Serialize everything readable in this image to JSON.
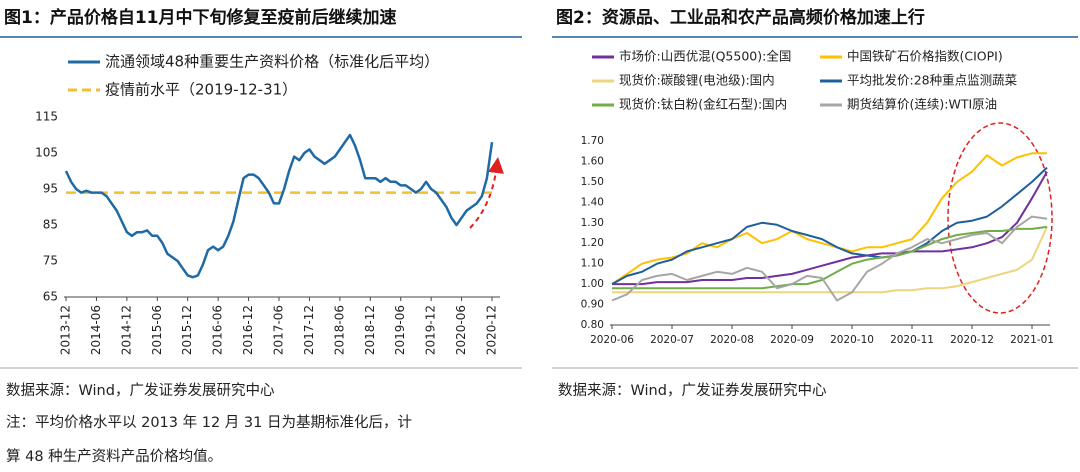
{
  "chart_data": [
    {
      "type": "line",
      "title": "图1：产品价格自11月中下旬修复至疫前后继续加速",
      "x": [
        "2013-12",
        "2014-01",
        "2014-02",
        "2014-03",
        "2014-04",
        "2014-05",
        "2014-06",
        "2014-07",
        "2014-08",
        "2014-09",
        "2014-10",
        "2014-11",
        "2014-12",
        "2015-01",
        "2015-02",
        "2015-03",
        "2015-04",
        "2015-05",
        "2015-06",
        "2015-07",
        "2015-08",
        "2015-09",
        "2015-10",
        "2015-11",
        "2015-12",
        "2016-01",
        "2016-02",
        "2016-03",
        "2016-04",
        "2016-05",
        "2016-06",
        "2016-07",
        "2016-08",
        "2016-09",
        "2016-10",
        "2016-11",
        "2016-12",
        "2017-01",
        "2017-02",
        "2017-03",
        "2017-04",
        "2017-05",
        "2017-06",
        "2017-07",
        "2017-08",
        "2017-09",
        "2017-10",
        "2017-11",
        "2017-12",
        "2018-01",
        "2018-02",
        "2018-03",
        "2018-04",
        "2018-05",
        "2018-06",
        "2018-07",
        "2018-08",
        "2018-09",
        "2018-10",
        "2018-11",
        "2018-12",
        "2019-01",
        "2019-02",
        "2019-03",
        "2019-04",
        "2019-05",
        "2019-06",
        "2019-07",
        "2019-08",
        "2019-09",
        "2019-10",
        "2019-11",
        "2019-12",
        "2020-01",
        "2020-02",
        "2020-03",
        "2020-04",
        "2020-05",
        "2020-06",
        "2020-07",
        "2020-08",
        "2020-09",
        "2020-10",
        "2020-11",
        "2020-12"
      ],
      "xticks": [
        "2013-12",
        "2014-06",
        "2014-12",
        "2015-06",
        "2015-12",
        "2016-06",
        "2016-12",
        "2017-06",
        "2017-12",
        "2018-06",
        "2018-12",
        "2019-06",
        "2019-12",
        "2020-06",
        "2020-12"
      ],
      "series": [
        {
          "name": "流通领域48种重要生产资料价格（标准化后平均）",
          "color": "#1f6aa5",
          "values": [
            100,
            97,
            95,
            94,
            94.5,
            94,
            94,
            94,
            93,
            91,
            89,
            86,
            83,
            82,
            83,
            83,
            83.5,
            82,
            82,
            80,
            77,
            76,
            75,
            73,
            71,
            70.5,
            71,
            74,
            78,
            79,
            78,
            79,
            82,
            86,
            92,
            98,
            99,
            99,
            98,
            96,
            94,
            91,
            91,
            95,
            100,
            104,
            103,
            105,
            106,
            104,
            103,
            102,
            103,
            104,
            106,
            108,
            110,
            107,
            103,
            98,
            98,
            98,
            97,
            98,
            97,
            97,
            96,
            96,
            95,
            94,
            95,
            97,
            95,
            94,
            92,
            90,
            87,
            85,
            87,
            89,
            90,
            91,
            93,
            98,
            108
          ]
        }
      ],
      "reference_line": {
        "name": "疫情前水平（2019-12-31）",
        "value": 94,
        "color": "#f0c030"
      },
      "ylim": [
        65,
        115
      ],
      "yticks": [
        65,
        75,
        85,
        95,
        105,
        115
      ]
    },
    {
      "type": "line",
      "title": "图2：资源品、工业品和农产品高频价格加速上行",
      "x": [
        "2020-06",
        "2020-06",
        "2020-06",
        "2020-06",
        "2020-07",
        "2020-07",
        "2020-07",
        "2020-07",
        "2020-08",
        "2020-08",
        "2020-08",
        "2020-08",
        "2020-09",
        "2020-09",
        "2020-09",
        "2020-09",
        "2020-10",
        "2020-10",
        "2020-10",
        "2020-10",
        "2020-11",
        "2020-11",
        "2020-11",
        "2020-11",
        "2020-12",
        "2020-12",
        "2020-12",
        "2020-12",
        "2021-01",
        "2021-01"
      ],
      "xticks": [
        "2020-06",
        "2020-07",
        "2020-08",
        "2020-09",
        "2020-10",
        "2020-11",
        "2020-12",
        "2021-01"
      ],
      "series": [
        {
          "name": "市场价:山西优混(Q5500):全国",
          "color": "#7030a0",
          "values": [
            1.0,
            1.0,
            1.0,
            1.01,
            1.01,
            1.01,
            1.02,
            1.02,
            1.02,
            1.03,
            1.03,
            1.04,
            1.05,
            1.07,
            1.09,
            1.11,
            1.13,
            1.14,
            1.15,
            1.15,
            1.16,
            1.16,
            1.16,
            1.17,
            1.18,
            1.2,
            1.23,
            1.3,
            1.42,
            1.55
          ]
        },
        {
          "name": "中国铁矿石价格指数(CIOPI)",
          "color": "#ffc000",
          "values": [
            1.0,
            1.05,
            1.1,
            1.12,
            1.13,
            1.15,
            1.2,
            1.18,
            1.22,
            1.25,
            1.2,
            1.22,
            1.26,
            1.22,
            1.2,
            1.18,
            1.16,
            1.18,
            1.18,
            1.2,
            1.22,
            1.3,
            1.42,
            1.5,
            1.55,
            1.63,
            1.58,
            1.62,
            1.64,
            1.64
          ]
        },
        {
          "name": "现货价:碳酸锂(电池级):国内",
          "color": "#ecd57e",
          "values": [
            0.96,
            0.96,
            0.96,
            0.96,
            0.96,
            0.96,
            0.96,
            0.96,
            0.96,
            0.96,
            0.96,
            0.96,
            0.96,
            0.96,
            0.96,
            0.96,
            0.96,
            0.96,
            0.96,
            0.97,
            0.97,
            0.98,
            0.98,
            0.99,
            1.01,
            1.03,
            1.05,
            1.07,
            1.12,
            1.28
          ]
        },
        {
          "name": "平均批发价:28种重点监测蔬菜",
          "color": "#1f5f9e",
          "values": [
            1.0,
            1.04,
            1.06,
            1.1,
            1.12,
            1.16,
            1.18,
            1.2,
            1.22,
            1.28,
            1.3,
            1.29,
            1.26,
            1.24,
            1.22,
            1.18,
            1.15,
            1.14,
            1.13,
            1.14,
            1.16,
            1.2,
            1.26,
            1.3,
            1.31,
            1.33,
            1.38,
            1.44,
            1.5,
            1.57
          ]
        },
        {
          "name": "现货价:钛白粉(金红石型):国内",
          "color": "#70ad47",
          "values": [
            0.98,
            0.98,
            0.98,
            0.98,
            0.98,
            0.98,
            0.98,
            0.98,
            0.98,
            0.98,
            0.98,
            0.99,
            1.0,
            1.0,
            1.02,
            1.06,
            1.1,
            1.12,
            1.13,
            1.14,
            1.16,
            1.19,
            1.22,
            1.24,
            1.25,
            1.26,
            1.26,
            1.27,
            1.27,
            1.28
          ]
        },
        {
          "name": "期货结算价(连续):WTI原油",
          "color": "#a6a6a6",
          "values": [
            0.92,
            0.95,
            1.02,
            1.04,
            1.05,
            1.02,
            1.04,
            1.06,
            1.05,
            1.08,
            1.06,
            0.98,
            1.0,
            1.04,
            1.03,
            0.92,
            0.96,
            1.06,
            1.1,
            1.15,
            1.18,
            1.22,
            1.2,
            1.22,
            1.24,
            1.25,
            1.2,
            1.28,
            1.33,
            1.32
          ]
        }
      ],
      "ylim": [
        0.8,
        1.7
      ],
      "yticks": [
        {
          "value": 0.8,
          "label": "0.80"
        },
        {
          "value": 0.9,
          "label": "0.90"
        },
        {
          "value": 1.0,
          "label": "1.00"
        },
        {
          "value": 1.1,
          "label": "1.10"
        },
        {
          "value": 1.2,
          "label": "1.20"
        },
        {
          "value": 1.3,
          "label": "1.30"
        },
        {
          "value": 1.4,
          "label": "1.40"
        },
        {
          "value": 1.5,
          "label": "1.50"
        },
        {
          "value": 1.6,
          "label": "1.60"
        },
        {
          "value": 1.7,
          "label": "1.70"
        }
      ]
    }
  ],
  "sources": [
    "数据来源：Wind，广发证券发展研究中心",
    "数据来源：Wind，广发证券发展研究中心"
  ],
  "notes": [
    "注：平均价格水平以 2013 年 12 月 31 日为基期标准化后，计",
    "算 48 种生产资料产品价格均值。"
  ]
}
